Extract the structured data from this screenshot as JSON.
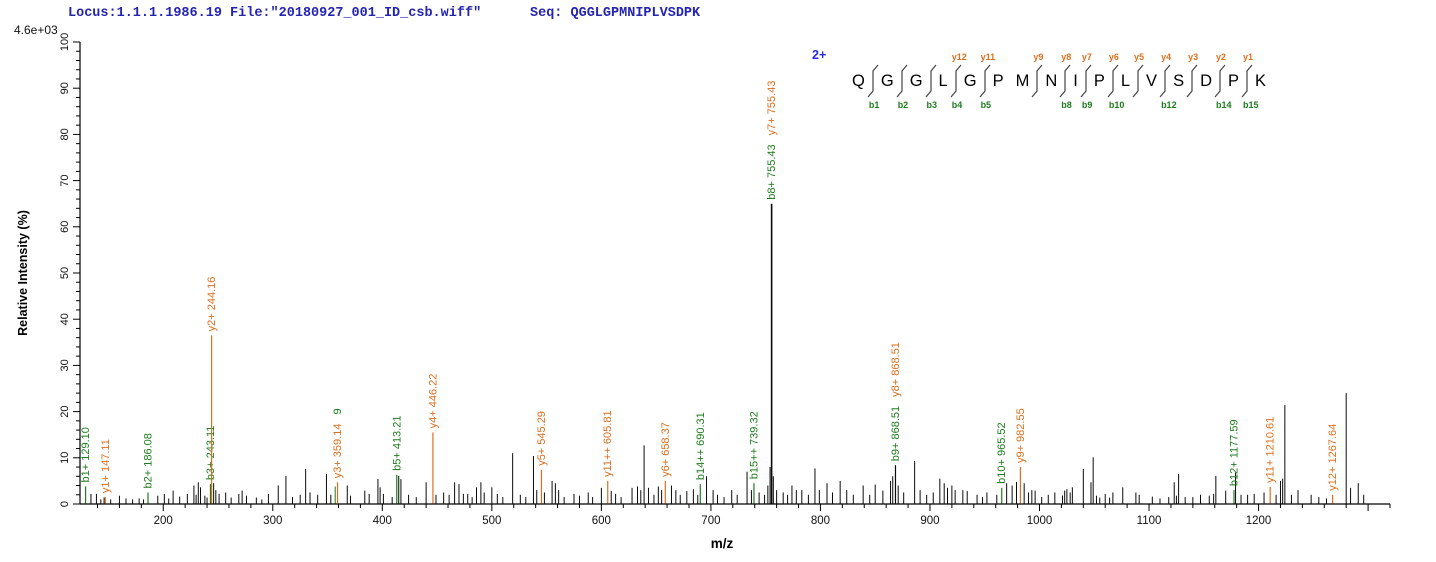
{
  "header": {
    "locus_file": "Locus:1.1.1.1986.19 File:\"20180927_001_ID_csb.wiff\"",
    "seq": "Seq: QGGLGPMNIPLVSDPK",
    "intensity_scale": "4.6e+03"
  },
  "colors": {
    "b_ion": "#1e7d1e",
    "y_ion": "#dd6f1e",
    "peak": "#0a0a0a",
    "axis": "#000000",
    "header_text": "#2424b2",
    "charge_text": "#2a2ae0",
    "divider_stroke": "#444444"
  },
  "sequence_panel": {
    "charge": "2+",
    "peptide": "QGGLGPMNIPLVSDPK",
    "residues": [
      {
        "aa": "Q",
        "divider": true,
        "b": "b1"
      },
      {
        "aa": "G",
        "divider": true,
        "b": "b2"
      },
      {
        "aa": "G",
        "divider": true,
        "b": "b3"
      },
      {
        "aa": "L",
        "divider": true,
        "b": "b4",
        "y": "y12"
      },
      {
        "aa": "G",
        "divider": true,
        "b": "b5",
        "y": "y11"
      },
      {
        "aa": "P",
        "divider": false
      },
      {
        "aa": "M",
        "divider": true,
        "y": "y9"
      },
      {
        "aa": "N",
        "divider": true,
        "b": "b8",
        "y": "y8"
      },
      {
        "aa": "I",
        "divider": true,
        "b": "b9",
        "y": "y7"
      },
      {
        "aa": "P",
        "divider": true,
        "b": "b10",
        "y": "y6"
      },
      {
        "aa": "L",
        "divider": true,
        "y": "y5"
      },
      {
        "aa": "V",
        "divider": true,
        "b": "b12",
        "y": "y4"
      },
      {
        "aa": "S",
        "divider": true,
        "y": "y3"
      },
      {
        "aa": "D",
        "divider": true,
        "b": "b14",
        "y": "y2"
      },
      {
        "aa": "P",
        "divider": true,
        "b": "b15",
        "y": "y1"
      },
      {
        "aa": "K",
        "divider": false
      }
    ]
  },
  "chart_data": {
    "type": "bar",
    "subtype": "ms2-fragment-spectrum",
    "title": "",
    "xlabel": "m/z",
    "ylabel": "Relative  Intensity  (%)",
    "intensity_scale": "4.6e+03",
    "grid": false,
    "x_axis": {
      "min": 124,
      "max": 1320,
      "label_start": 200,
      "label_end": 1200,
      "major_step": 100,
      "minor_step": 20
    },
    "y_axis": {
      "min": 0,
      "max": 100,
      "major_step": 10,
      "minor_step": 2
    },
    "annotated_peaks": [
      {
        "mz": 129.1,
        "rel_int": 3.8,
        "line": "b",
        "labels": [
          {
            "text": "b1+ 129.10",
            "color": "b"
          }
        ]
      },
      {
        "mz": 147.11,
        "rel_int": 1.5,
        "line": "y",
        "labels": [
          {
            "text": "y1+ 147.11",
            "color": "y"
          }
        ]
      },
      {
        "mz": 186.08,
        "rel_int": 2.5,
        "line": "b",
        "labels": [
          {
            "text": "b2+ 186.08",
            "color": "b"
          }
        ]
      },
      {
        "mz": 243.11,
        "rel_int": 4.3,
        "line": "b",
        "labels": [
          {
            "text": "b3+ 243.11",
            "color": "b"
          }
        ]
      },
      {
        "mz": 244.16,
        "rel_int": 36.5,
        "line": "y",
        "labels": [
          {
            "text": "y2+ 244.16",
            "color": "y"
          }
        ]
      },
      {
        "mz": 359.14,
        "rel_int": 4.7,
        "line": "y",
        "labels": [
          {
            "text": "y3+ 359.14",
            "color": "y"
          },
          {
            "text": "9",
            "color": "b"
          }
        ]
      },
      {
        "mz": 413.21,
        "rel_int": 6.3,
        "line": "b",
        "labels": [
          {
            "text": "b5+ 413.21",
            "color": "b"
          }
        ]
      },
      {
        "mz": 446.22,
        "rel_int": 15.5,
        "line": "y",
        "labels": [
          {
            "text": "y4+ 446.22",
            "color": "y"
          }
        ]
      },
      {
        "mz": 545.29,
        "rel_int": 7.4,
        "line": "y",
        "labels": [
          {
            "text": "y5+ 545.29",
            "color": "y"
          }
        ]
      },
      {
        "mz": 605.81,
        "rel_int": 5.0,
        "line": "y",
        "labels": [
          {
            "text": "y11++ 605.81",
            "color": "y"
          }
        ]
      },
      {
        "mz": 658.37,
        "rel_int": 5.0,
        "line": "y",
        "labels": [
          {
            "text": "y6+ 658.37",
            "color": "y"
          }
        ]
      },
      {
        "mz": 690.31,
        "rel_int": 4.3,
        "line": "b",
        "labels": [
          {
            "text": "b14++ 690.31",
            "color": "b"
          }
        ]
      },
      {
        "mz": 739.32,
        "rel_int": 4.5,
        "line": "b",
        "labels": [
          {
            "text": "b15++ 739.32",
            "color": "b"
          }
        ]
      },
      {
        "mz": 755.43,
        "rel_int": 65.0,
        "line": "k",
        "labels": [
          {
            "text": "b8+ 755.43",
            "color": "b"
          },
          {
            "text": "y7+ 755.43",
            "color": "y"
          }
        ]
      },
      {
        "mz": 868.51,
        "rel_int": 8.4,
        "line": "k",
        "labels": [
          {
            "text": "b9+ 868.51",
            "color": "b"
          },
          {
            "text": "y8+ 868.51",
            "color": "y"
          }
        ]
      },
      {
        "mz": 965.52,
        "rel_int": 3.5,
        "line": "b",
        "labels": [
          {
            "text": "b10+ 965.52",
            "color": "b"
          }
        ]
      },
      {
        "mz": 982.55,
        "rel_int": 8.0,
        "line": "y",
        "labels": [
          {
            "text": "y9+ 982.55",
            "color": "y"
          }
        ]
      },
      {
        "mz": 1177.59,
        "rel_int": 3.0,
        "line": "b",
        "labels": [
          {
            "text": "b12+ 1177.59",
            "color": "b"
          }
        ]
      },
      {
        "mz": 1210.61,
        "rel_int": 3.7,
        "line": "y",
        "labels": [
          {
            "text": "y11+ 1210.61",
            "color": "y"
          }
        ]
      },
      {
        "mz": 1267.64,
        "rel_int": 2.0,
        "line": "y",
        "labels": [
          {
            "text": "y12+ 1267.64",
            "color": "y"
          }
        ]
      }
    ],
    "background_peaks": [
      [
        124,
        1.2
      ],
      [
        134,
        2.2
      ],
      [
        139,
        2.2
      ],
      [
        143,
        1.0
      ],
      [
        146,
        1.4
      ],
      [
        152,
        1.0
      ],
      [
        160,
        1.8
      ],
      [
        166,
        1.2
      ],
      [
        172,
        1.0
      ],
      [
        178,
        1.2
      ],
      [
        182,
        1.0
      ],
      [
        195,
        1.8
      ],
      [
        201,
        2.2
      ],
      [
        205,
        1.2
      ],
      [
        209,
        2.9
      ],
      [
        215,
        1.6
      ],
      [
        222,
        2.2
      ],
      [
        228,
        4.0
      ],
      [
        230,
        2.0
      ],
      [
        232,
        4.7
      ],
      [
        234,
        3.6
      ],
      [
        238,
        1.8
      ],
      [
        240,
        1.4
      ],
      [
        246,
        4.5
      ],
      [
        248,
        3.0
      ],
      [
        251,
        2.2
      ],
      [
        257,
        2.5
      ],
      [
        262,
        1.4
      ],
      [
        269,
        2.2
      ],
      [
        272,
        2.9
      ],
      [
        276,
        1.8
      ],
      [
        285,
        1.4
      ],
      [
        290,
        1.0
      ],
      [
        296,
        2.2
      ],
      [
        305,
        4.0
      ],
      [
        312,
        6.1
      ],
      [
        318,
        1.5
      ],
      [
        325,
        2.0
      ],
      [
        330,
        7.6
      ],
      [
        334,
        2.5
      ],
      [
        341,
        2.0
      ],
      [
        349,
        6.5
      ],
      [
        353,
        2.0
      ],
      [
        357,
        3.8,
        "b"
      ],
      [
        368,
        4.0
      ],
      [
        371,
        1.8
      ],
      [
        384,
        2.9
      ],
      [
        388,
        2.2
      ],
      [
        396,
        5.4
      ],
      [
        398,
        3.6
      ],
      [
        401,
        2.2
      ],
      [
        409,
        1.5
      ],
      [
        415,
        6.1
      ],
      [
        417,
        5.4
      ],
      [
        424,
        2.0
      ],
      [
        431,
        1.5
      ],
      [
        440,
        4.7
      ],
      [
        449,
        2.0
      ],
      [
        456,
        2.5
      ],
      [
        461,
        2.0
      ],
      [
        466,
        4.7
      ],
      [
        470,
        4.3
      ],
      [
        474,
        2.2
      ],
      [
        478,
        2.2
      ],
      [
        482,
        1.5
      ],
      [
        486,
        3.6
      ],
      [
        490,
        4.7
      ],
      [
        493,
        2.5
      ],
      [
        500,
        3.6
      ],
      [
        505,
        2.2
      ],
      [
        510,
        1.5
      ],
      [
        519,
        11.0
      ],
      [
        526,
        2.0
      ],
      [
        531,
        1.5
      ],
      [
        538,
        10.4
      ],
      [
        541,
        3.0
      ],
      [
        548,
        2.5
      ],
      [
        555,
        5.0
      ],
      [
        558,
        4.5
      ],
      [
        561,
        3.0
      ],
      [
        566,
        1.5
      ],
      [
        575,
        2.2
      ],
      [
        580,
        1.8
      ],
      [
        588,
        2.5
      ],
      [
        592,
        1.5
      ],
      [
        600,
        3.5
      ],
      [
        609,
        2.8
      ],
      [
        613,
        2.2
      ],
      [
        618,
        1.5
      ],
      [
        628,
        3.5
      ],
      [
        633,
        3.8
      ],
      [
        636,
        3.0
      ],
      [
        639,
        12.7
      ],
      [
        643,
        3.5
      ],
      [
        648,
        2.0
      ],
      [
        652,
        3.8
      ],
      [
        655,
        3.0
      ],
      [
        664,
        4.0
      ],
      [
        668,
        3.0
      ],
      [
        672,
        2.0
      ],
      [
        678,
        2.8
      ],
      [
        684,
        3.2
      ],
      [
        688,
        2.0
      ],
      [
        696,
        6.0
      ],
      [
        702,
        3.0
      ],
      [
        706,
        2.0
      ],
      [
        712,
        1.5
      ],
      [
        719,
        3.0
      ],
      [
        724,
        2.0
      ],
      [
        733,
        7.0
      ],
      [
        737,
        3.0
      ],
      [
        744,
        2.5
      ],
      [
        749,
        2.0
      ],
      [
        752,
        4.0
      ],
      [
        754,
        8.0
      ],
      [
        757,
        6.0
      ],
      [
        760,
        3.0
      ],
      [
        766,
        2.5
      ],
      [
        770,
        2.0
      ],
      [
        774,
        4.0
      ],
      [
        778,
        3.0
      ],
      [
        783,
        3.0
      ],
      [
        789,
        2.0
      ],
      [
        795,
        7.7
      ],
      [
        799,
        3.0
      ],
      [
        806,
        4.5
      ],
      [
        811,
        2.5
      ],
      [
        818,
        5.0
      ],
      [
        824,
        3.0
      ],
      [
        830,
        2.0
      ],
      [
        839,
        4.0
      ],
      [
        845,
        2.0
      ],
      [
        850,
        4.2
      ],
      [
        857,
        2.9
      ],
      [
        864,
        5.0
      ],
      [
        866,
        6.0
      ],
      [
        871,
        4.0
      ],
      [
        876,
        2.5
      ],
      [
        886,
        9.3
      ],
      [
        891,
        3.0
      ],
      [
        897,
        2.0
      ],
      [
        903,
        2.5
      ],
      [
        909,
        5.5
      ],
      [
        913,
        4.5
      ],
      [
        916,
        3.5
      ],
      [
        920,
        4.0
      ],
      [
        923,
        3.0
      ],
      [
        930,
        3.0
      ],
      [
        934,
        2.8
      ],
      [
        943,
        2.0
      ],
      [
        948,
        1.5
      ],
      [
        952,
        2.5
      ],
      [
        961,
        2.0
      ],
      [
        970,
        4.5
      ],
      [
        975,
        4.0
      ],
      [
        979,
        4.8
      ],
      [
        986,
        4.5
      ],
      [
        990,
        2.5
      ],
      [
        993,
        3.0
      ],
      [
        996,
        2.9
      ],
      [
        1002,
        1.5
      ],
      [
        1008,
        2.0
      ],
      [
        1014,
        2.5
      ],
      [
        1021,
        1.8
      ],
      [
        1023,
        2.9
      ],
      [
        1025,
        3.2
      ],
      [
        1028,
        2.5
      ],
      [
        1030,
        3.6
      ],
      [
        1040,
        7.6
      ],
      [
        1047,
        4.7
      ],
      [
        1049,
        10.1
      ],
      [
        1052,
        1.8
      ],
      [
        1055,
        1.4
      ],
      [
        1060,
        2.2
      ],
      [
        1064,
        1.4
      ],
      [
        1067,
        2.5
      ],
      [
        1076,
        3.6
      ],
      [
        1088,
        2.5
      ],
      [
        1091,
        2.0
      ],
      [
        1103,
        1.6
      ],
      [
        1110,
        1.2
      ],
      [
        1118,
        1.5
      ],
      [
        1123,
        4.7
      ],
      [
        1125,
        1.8
      ],
      [
        1127,
        6.5
      ],
      [
        1133,
        1.5
      ],
      [
        1140,
        1.5
      ],
      [
        1147,
        2.0
      ],
      [
        1155,
        1.8
      ],
      [
        1159,
        2.2
      ],
      [
        1161,
        6.1
      ],
      [
        1170,
        2.9
      ],
      [
        1179,
        6.8
      ],
      [
        1184,
        2.0
      ],
      [
        1190,
        2.0
      ],
      [
        1196,
        2.2
      ],
      [
        1205,
        2.5
      ],
      [
        1216,
        2.0
      ],
      [
        1220,
        5.0
      ],
      [
        1222,
        5.5
      ],
      [
        1224,
        21.4
      ],
      [
        1230,
        2.0
      ],
      [
        1236,
        3.0
      ],
      [
        1248,
        2.0
      ],
      [
        1255,
        1.5
      ],
      [
        1262,
        1.2
      ],
      [
        1280,
        24.0
      ],
      [
        1284,
        3.5
      ],
      [
        1291,
        4.5
      ],
      [
        1296,
        2.0
      ]
    ]
  }
}
